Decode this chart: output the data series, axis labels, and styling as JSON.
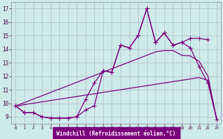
{
  "xlabel": "Windchill (Refroidissement éolien,°C)",
  "bg_color": "#ceeaea",
  "grid_color": "#b0b8cc",
  "line_color": "#7b007b",
  "xlabel_bg": "#7b007b",
  "xlabel_fg": "#ffffff",
  "x_values": [
    0,
    1,
    2,
    3,
    4,
    5,
    6,
    7,
    8,
    9,
    10,
    11,
    12,
    13,
    14,
    15,
    16,
    17,
    18,
    19,
    20,
    21,
    22,
    23
  ],
  "jagged1": [
    9.8,
    9.3,
    9.3,
    9.0,
    8.9,
    8.9,
    8.9,
    9.0,
    9.5,
    9.8,
    12.4,
    12.3,
    14.3,
    14.1,
    15.0,
    17.0,
    14.5,
    15.2,
    14.3,
    14.5,
    14.8,
    14.8,
    14.7,
    null
  ],
  "jagged2": [
    9.8,
    9.3,
    9.3,
    9.0,
    8.9,
    8.9,
    8.9,
    9.0,
    10.3,
    11.5,
    12.4,
    12.3,
    14.3,
    14.1,
    15.0,
    17.0,
    14.5,
    15.2,
    14.3,
    14.5,
    14.1,
    12.7,
    11.5,
    8.8
  ],
  "straight1": [
    9.8,
    10.05,
    10.3,
    10.55,
    10.8,
    11.05,
    11.3,
    11.55,
    11.8,
    12.05,
    12.3,
    12.55,
    12.8,
    13.05,
    13.3,
    13.55,
    13.8,
    13.9,
    13.9,
    13.55,
    13.5,
    13.1,
    12.0,
    8.8
  ],
  "straight2": [
    9.75,
    9.9,
    10.0,
    10.1,
    10.2,
    10.3,
    10.4,
    10.5,
    10.6,
    10.7,
    10.8,
    10.9,
    11.0,
    11.1,
    11.2,
    11.3,
    11.4,
    11.5,
    11.6,
    11.7,
    11.8,
    11.9,
    11.7,
    8.8
  ],
  "ylim": [
    8.5,
    17.5
  ],
  "yticks": [
    9,
    10,
    11,
    12,
    13,
    14,
    15,
    16,
    17
  ],
  "xlim": [
    -0.5,
    23.5
  ]
}
